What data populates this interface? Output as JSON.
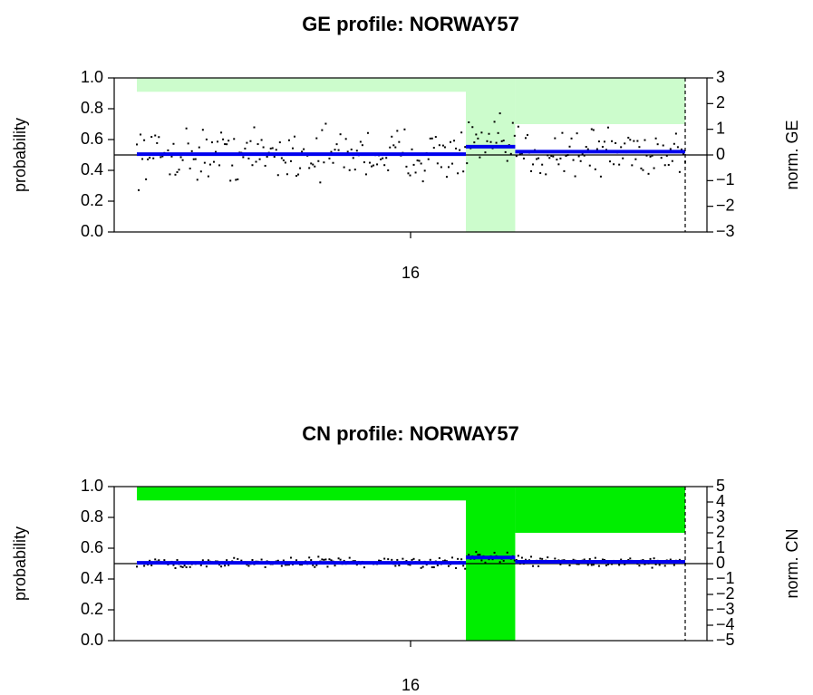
{
  "chart_data": [
    {
      "type": "scatter",
      "title": "GE profile: NORWAY57",
      "ylabel": "probability",
      "y2label": "norm. GE",
      "xtick_label": "16",
      "ylim": [
        0,
        1
      ],
      "y_ticks": [
        "0.0",
        "0.2",
        "0.4",
        "0.6",
        "0.8",
        "1.0"
      ],
      "y2lim": [
        -3,
        3
      ],
      "y2_ticks": [
        "−3",
        "−2",
        "−1",
        "0",
        "1",
        "2",
        "3"
      ],
      "baseline": 0,
      "probability_color": "#ccfccc",
      "points_color": "#000000",
      "segment_color": "#0000ee",
      "probability_regions": [
        {
          "x_start": 0.0,
          "x_end": 0.6,
          "probability": 0.09
        },
        {
          "x_start": 0.6,
          "x_end": 0.69,
          "probability": 1.0
        },
        {
          "x_start": 0.69,
          "x_end": 1.0,
          "probability": 0.3
        }
      ],
      "segments": [
        {
          "x_start": 0.0,
          "x_end": 0.6,
          "value": 0.03
        },
        {
          "x_start": 0.6,
          "x_end": 0.69,
          "value": 0.32
        },
        {
          "x_start": 0.69,
          "x_end": 1.0,
          "value": 0.13
        }
      ],
      "points_spread": 0.5,
      "dashed_line_x": 1.0
    },
    {
      "type": "scatter",
      "title": "CN profile: NORWAY57",
      "ylabel": "probability",
      "y2label": "norm. CN",
      "xtick_label": "16",
      "ylim": [
        0,
        1
      ],
      "y_ticks": [
        "0.0",
        "0.2",
        "0.4",
        "0.6",
        "0.8",
        "1.0"
      ],
      "y2lim": [
        -5,
        5
      ],
      "y2_ticks": [
        "−5",
        "−4",
        "−3",
        "−2",
        "−1",
        "0",
        "1",
        "2",
        "3",
        "4",
        "5"
      ],
      "baseline": 0,
      "probability_color": "#00ee00",
      "points_color": "#000000",
      "segment_color": "#0000ee",
      "probability_regions": [
        {
          "x_start": 0.0,
          "x_end": 0.6,
          "probability": 0.09
        },
        {
          "x_start": 0.6,
          "x_end": 0.69,
          "probability": 1.0
        },
        {
          "x_start": 0.69,
          "x_end": 1.0,
          "probability": 0.3
        }
      ],
      "segments": [
        {
          "x_start": 0.0,
          "x_end": 0.6,
          "value": 0.05
        },
        {
          "x_start": 0.6,
          "x_end": 0.69,
          "value": 0.4
        },
        {
          "x_start": 0.69,
          "x_end": 1.0,
          "value": 0.12
        }
      ],
      "points_spread": 0.15,
      "dashed_line_x": 1.0
    }
  ]
}
